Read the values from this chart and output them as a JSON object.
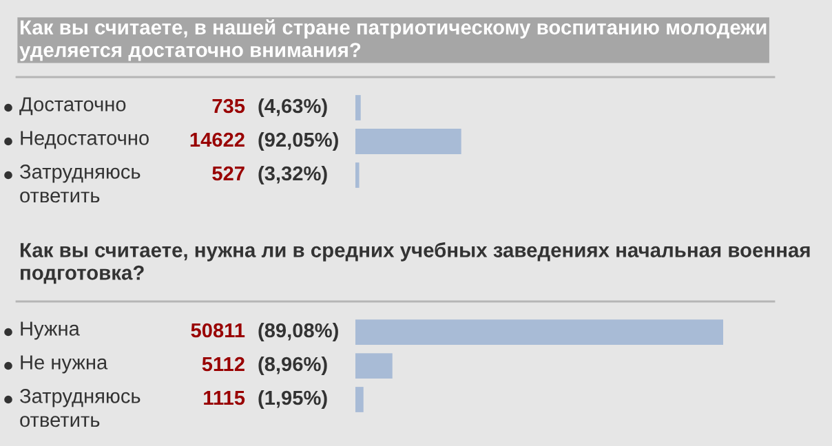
{
  "chart_data": [
    {
      "type": "bar",
      "orientation": "horizontal",
      "title": "Как вы считаете, в нашей стране патриотическому воспитанию молодежи уделяется достаточно внимания?",
      "categories": [
        "Достаточно",
        "Недостаточно",
        "Затрудняюсь ответить"
      ],
      "values": [
        735,
        14622,
        527
      ],
      "value_labels": [
        "735 (4,63%)",
        "14622 (92,05%)",
        "527 (3,32%)"
      ],
      "color": "#a8bbd6"
    },
    {
      "type": "bar",
      "orientation": "horizontal",
      "title": "Как вы считаете, нужна ли в средних учебных заведениях начальная военная подготовка?",
      "categories": [
        "Нужна",
        "Не нужна",
        "Затрудняюсь ответить"
      ],
      "values": [
        50811,
        5112,
        1115
      ],
      "value_labels": [
        "50811 (89,08%)",
        "5112 (8,96%)",
        "1115 (1,95%)"
      ],
      "color": "#a8bbd6"
    }
  ]
}
